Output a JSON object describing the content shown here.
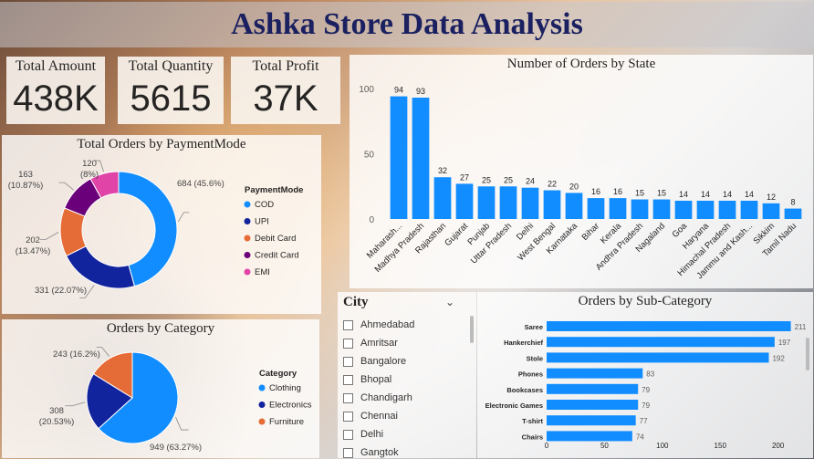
{
  "title": "Ashka Store Data Analysis",
  "kpis": [
    {
      "label": "Total Amount",
      "value": "438K"
    },
    {
      "label": "Total Quantity",
      "value": "5615"
    },
    {
      "label": "Total Profit",
      "value": "37K"
    }
  ],
  "city_slicer": {
    "title": "City",
    "items": [
      "Ahmedabad",
      "Amritsar",
      "Bangalore",
      "Bhopal",
      "Chandigarh",
      "Chennai",
      "Delhi",
      "Gangtok"
    ]
  },
  "colors": {
    "blue": "#118DFF",
    "navy": "#12239E",
    "orange": "#E66C37",
    "purple": "#6B007B",
    "pink": "#E044A7"
  },
  "chart_data": [
    {
      "id": "orders_by_state",
      "type": "bar",
      "title": "Number of Orders by State",
      "categories": [
        "Maharash...",
        "Madhya Pradesh",
        "Rajasthan",
        "Gujarat",
        "Punjab",
        "Uttar Pradesh",
        "Delhi",
        "West Bengal",
        "Karnataka",
        "Bihar",
        "Kerala",
        "Andhra Pradesh",
        "Nagaland",
        "Goa",
        "Haryana",
        "Himachal Pradesh",
        "Jammu and Kash...",
        "Sikkim",
        "Tamil Nadu"
      ],
      "values": [
        94,
        93,
        32,
        27,
        25,
        25,
        24,
        22,
        20,
        16,
        16,
        15,
        15,
        14,
        14,
        14,
        14,
        12,
        8
      ],
      "yticks": [
        0,
        50,
        100
      ],
      "ylim": [
        0,
        100
      ]
    },
    {
      "id": "orders_by_paymentmode",
      "type": "pie",
      "title": "Total Orders by PaymentMode",
      "legend_title": "PaymentMode",
      "categories": [
        "COD",
        "UPI",
        "Debit Card",
        "Credit Card",
        "EMI"
      ],
      "values": [
        684,
        331,
        202,
        163,
        120
      ],
      "percent_labels": [
        "45.6%",
        "22.07%",
        "13.47%",
        "10.87%",
        "8%"
      ]
    },
    {
      "id": "orders_by_category",
      "type": "pie",
      "title": "Orders by Category",
      "legend_title": "Category",
      "categories": [
        "Clothing",
        "Electronics",
        "Furniture"
      ],
      "values": [
        949,
        308,
        243
      ],
      "percent_labels": [
        "63.27%",
        "20.53%",
        "16.2%"
      ]
    },
    {
      "id": "orders_by_subcategory",
      "type": "bar",
      "orientation": "horizontal",
      "title": "Orders by Sub-Category",
      "categories": [
        "Saree",
        "Hankerchief",
        "Stole",
        "Phones",
        "Bookcases",
        "Electronic Games",
        "T-shirt",
        "Chairs"
      ],
      "values": [
        211,
        197,
        192,
        83,
        79,
        79,
        77,
        74
      ],
      "xticks": [
        0,
        50,
        100,
        150,
        200
      ],
      "xlim": [
        0,
        220
      ]
    }
  ]
}
